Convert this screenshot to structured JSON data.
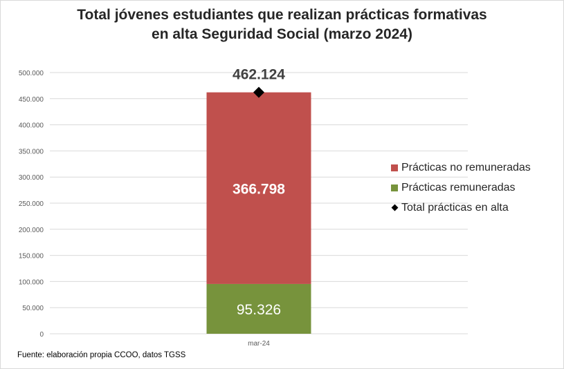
{
  "title_lines": [
    "Total jóvenes estudiantes que realizan prácticas formativas",
    "en alta Seguridad Social (marzo 2024)"
  ],
  "source": "Fuente: elaboración propia CCOO, datos TGSS",
  "colors": {
    "no_remuneradas": "#c0504d",
    "remuneradas": "#77933c",
    "total_marker": "#000000",
    "grid": "#d9d9d9",
    "axis_text": "#595959"
  },
  "chart_data": {
    "type": "bar",
    "stacked": true,
    "categories": [
      "mar-24"
    ],
    "series": [
      {
        "name": "Prácticas remuneradas",
        "values": [
          95326
        ],
        "labels": [
          "95.326"
        ],
        "color": "#77933c"
      },
      {
        "name": "Prácticas no remuneradas",
        "values": [
          366798
        ],
        "labels": [
          "366.798"
        ],
        "color": "#c0504d"
      }
    ],
    "total": {
      "name": "Total prácticas en alta",
      "values": [
        462124
      ],
      "labels": [
        "462.124"
      ],
      "marker": "diamond"
    },
    "ylim": [
      0,
      500000
    ],
    "ytick_labels": [
      "0",
      "50.000",
      "100.000",
      "150.000",
      "200.000",
      "250.000",
      "300.000",
      "350.000",
      "400.000",
      "450.000",
      "500.000"
    ],
    "grid": true,
    "legend_position": "right",
    "legend": [
      "Prácticas no remuneradas",
      "Prácticas remuneradas",
      "Total prácticas en alta"
    ]
  }
}
